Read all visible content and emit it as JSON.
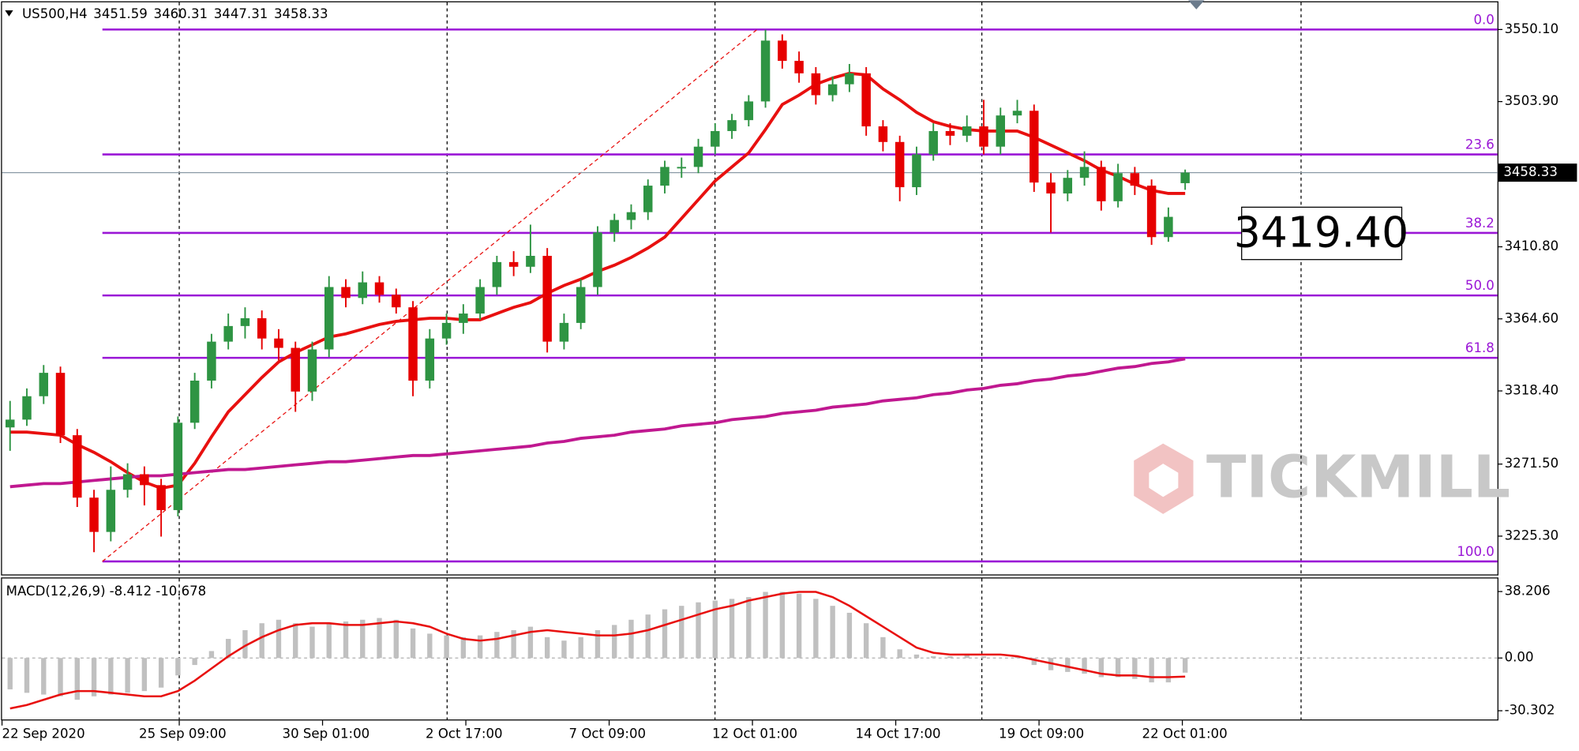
{
  "chart_data": {
    "type": "candlestick",
    "symbol": "US500,H4",
    "candles": [
      [
        3295,
        3312,
        3280,
        3300
      ],
      [
        3300,
        3320,
        3296,
        3315
      ],
      [
        3315,
        3335,
        3310,
        3330
      ],
      [
        3330,
        3334,
        3285,
        3290
      ],
      [
        3290,
        3294,
        3244,
        3250
      ],
      [
        3250,
        3255,
        3215,
        3228
      ],
      [
        3228,
        3270,
        3222,
        3255
      ],
      [
        3255,
        3272,
        3250,
        3265
      ],
      [
        3265,
        3270,
        3245,
        3258
      ],
      [
        3258,
        3262,
        3225,
        3242
      ],
      [
        3242,
        3302,
        3238,
        3298
      ],
      [
        3298,
        3330,
        3294,
        3325
      ],
      [
        3325,
        3355,
        3320,
        3350
      ],
      [
        3350,
        3368,
        3345,
        3360
      ],
      [
        3360,
        3372,
        3352,
        3365
      ],
      [
        3365,
        3370,
        3345,
        3352
      ],
      [
        3352,
        3358,
        3338,
        3346
      ],
      [
        3346,
        3350,
        3305,
        3318
      ],
      [
        3318,
        3350,
        3312,
        3345
      ],
      [
        3345,
        3392,
        3340,
        3385
      ],
      [
        3385,
        3390,
        3372,
        3378
      ],
      [
        3378,
        3395,
        3374,
        3388
      ],
      [
        3388,
        3392,
        3375,
        3380
      ],
      [
        3380,
        3384,
        3368,
        3372
      ],
      [
        3372,
        3376,
        3315,
        3325
      ],
      [
        3325,
        3358,
        3320,
        3352
      ],
      [
        3352,
        3368,
        3348,
        3362
      ],
      [
        3362,
        3374,
        3355,
        3368
      ],
      [
        3368,
        3390,
        3364,
        3385
      ],
      [
        3385,
        3405,
        3380,
        3401
      ],
      [
        3401,
        3408,
        3392,
        3398
      ],
      [
        3398,
        3425,
        3394,
        3405
      ],
      [
        3405,
        3410,
        3343,
        3350
      ],
      [
        3350,
        3368,
        3345,
        3362
      ],
      [
        3362,
        3390,
        3358,
        3385
      ],
      [
        3385,
        3424,
        3380,
        3420
      ],
      [
        3420,
        3432,
        3414,
        3428
      ],
      [
        3428,
        3438,
        3422,
        3433
      ],
      [
        3433,
        3454,
        3428,
        3450
      ],
      [
        3450,
        3466,
        3445,
        3462
      ],
      [
        3462,
        3468,
        3455,
        3462
      ],
      [
        3462,
        3480,
        3458,
        3475
      ],
      [
        3475,
        3490,
        3470,
        3485
      ],
      [
        3485,
        3496,
        3480,
        3492
      ],
      [
        3492,
        3508,
        3488,
        3504
      ],
      [
        3504,
        3550,
        3500,
        3543
      ],
      [
        3543,
        3547,
        3525,
        3530
      ],
      [
        3530,
        3536,
        3516,
        3522
      ],
      [
        3522,
        3526,
        3502,
        3508
      ],
      [
        3508,
        3520,
        3504,
        3515
      ],
      [
        3515,
        3528,
        3510,
        3522
      ],
      [
        3522,
        3526,
        3482,
        3488
      ],
      [
        3488,
        3492,
        3472,
        3478
      ],
      [
        3478,
        3482,
        3440,
        3449
      ],
      [
        3449,
        3475,
        3444,
        3470
      ],
      [
        3470,
        3490,
        3466,
        3485
      ],
      [
        3485,
        3490,
        3476,
        3482
      ],
      [
        3482,
        3495,
        3478,
        3488
      ],
      [
        3488,
        3505,
        3470,
        3475
      ],
      [
        3475,
        3500,
        3470,
        3495
      ],
      [
        3495,
        3505,
        3490,
        3498
      ],
      [
        3498,
        3502,
        3446,
        3452
      ],
      [
        3452,
        3458,
        3420,
        3445
      ],
      [
        3445,
        3460,
        3440,
        3455
      ],
      [
        3455,
        3472,
        3450,
        3462
      ],
      [
        3462,
        3466,
        3434,
        3440
      ],
      [
        3440,
        3464,
        3436,
        3458
      ],
      [
        3458,
        3462,
        3444,
        3450
      ],
      [
        3450,
        3454,
        3412,
        3417
      ],
      [
        3417,
        3436,
        3414,
        3430
      ],
      [
        3451.59,
        3460.31,
        3447.31,
        3458.33
      ]
    ],
    "bull_color": "#2e9443",
    "bear_color": "#e60000",
    "x_labels": [
      "22 Sep 2020",
      "25 Sep 09:00",
      "30 Sep 01:00",
      "2 Oct 17:00",
      "7 Oct 09:00",
      "12 Oct 01:00",
      "14 Oct 17:00",
      "19 Oct 09:00",
      "22 Oct 01:00"
    ],
    "ylim": [
      3200.75,
      3568.83
    ],
    "yticks": [
      {
        "value": 3550.1,
        "label": "3550.10"
      },
      {
        "value": 3503.9,
        "label": "3503.90"
      },
      {
        "value": 3410.8,
        "label": "3410.80"
      },
      {
        "value": 3364.6,
        "label": "3364.60"
      },
      {
        "value": 3318.4,
        "label": "3318.40"
      },
      {
        "value": 3271.5,
        "label": "3271.50"
      },
      {
        "value": 3225.3,
        "label": "3225.30"
      }
    ],
    "moving_averages": [
      {
        "color": "#e8100f",
        "values": [
          3292,
          3292,
          3291,
          3290,
          3284,
          3279,
          3273,
          3266,
          3260,
          3256,
          3258,
          3272,
          3289,
          3305,
          3316,
          3327,
          3337,
          3343,
          3348,
          3353,
          3355,
          3358,
          3361,
          3363,
          3364,
          3365,
          3365,
          3364,
          3364,
          3368,
          3372,
          3375,
          3381,
          3386,
          3390,
          3395,
          3399,
          3404,
          3410,
          3417,
          3429,
          3441,
          3453,
          3462,
          3471,
          3486,
          3502,
          3508,
          3515,
          3519,
          3522,
          3521,
          3512,
          3505,
          3497,
          3491,
          3488,
          3486,
          3485,
          3485,
          3485,
          3481,
          3476,
          3471,
          3466,
          3460,
          3456,
          3451,
          3447,
          3445,
          3445
        ]
      },
      {
        "color": "#c01890",
        "values": [
          3257,
          3258,
          3259,
          3259,
          3260,
          3261,
          3262,
          3263,
          3264,
          3264,
          3265,
          3266,
          3267,
          3268,
          3268,
          3269,
          3270,
          3271,
          3272,
          3273,
          3273,
          3274,
          3275,
          3276,
          3277,
          3277,
          3278,
          3279,
          3280,
          3281,
          3282,
          3283,
          3285,
          3286,
          3288,
          3289,
          3290,
          3292,
          3293,
          3294,
          3296,
          3297,
          3298,
          3300,
          3301,
          3302,
          3304,
          3305,
          3306,
          3308,
          3309,
          3310,
          3312,
          3313,
          3314,
          3316,
          3317,
          3319,
          3320,
          3322,
          3323,
          3325,
          3326,
          3328,
          3329,
          3331,
          3333,
          3334,
          3336,
          3337,
          3339
        ]
      }
    ],
    "fib_color": "#9a16d6",
    "fib_levels": [
      {
        "label": "0.0",
        "value": 3550.1
      },
      {
        "label": "23.6",
        "value": 3470.0
      },
      {
        "label": "38.2",
        "value": 3419.7
      },
      {
        "label": "50.0",
        "value": 3379.6
      },
      {
        "label": "61.8",
        "value": 3339.6
      },
      {
        "label": "100.0",
        "value": 3209.1
      }
    ],
    "annotation": {
      "value": 3419.4,
      "label": "3419.40"
    },
    "watermark": "TICKMILL",
    "macd": {
      "title": "MACD(12,26,9)",
      "hist_color": "#c0c0c0",
      "signal_color": "#e8100f",
      "values": [
        -18,
        -20,
        -21,
        -22,
        -24,
        -22,
        -21,
        -20,
        -19,
        -17,
        -10,
        -4,
        4,
        11,
        16,
        20,
        22,
        20,
        18,
        20,
        21,
        22,
        23,
        22,
        17,
        14,
        13,
        12,
        13,
        15,
        16,
        18,
        12,
        10,
        12,
        16,
        19,
        22,
        25,
        28,
        30,
        32,
        33,
        34,
        35,
        38,
        38,
        37,
        34,
        30,
        26,
        20,
        12,
        5,
        2,
        1,
        1,
        2,
        1,
        0,
        1,
        -4,
        -7,
        -8,
        -9,
        -11,
        -11,
        -12,
        -14,
        -14,
        -8.412
      ],
      "signal": [
        -29,
        -27,
        -24,
        -21,
        -19,
        -19,
        -20,
        -21,
        -22,
        -22,
        -19,
        -13,
        -6,
        1,
        7,
        12,
        16,
        19,
        20,
        20,
        19,
        19,
        20,
        21,
        20,
        18,
        14,
        11,
        10,
        11,
        13,
        15,
        16,
        15,
        14,
        13,
        13,
        14,
        16,
        19,
        22,
        25,
        28,
        30,
        33,
        35,
        37,
        38,
        38,
        35,
        30,
        24,
        18,
        12,
        6,
        3,
        2,
        2,
        2,
        2,
        1,
        -1,
        -3,
        -5,
        -7,
        -9,
        -10,
        -10,
        -11,
        -11,
        -10.678
      ],
      "y2lim": [
        -35.9,
        46.3
      ],
      "y2ticks": [
        38.206,
        {
          "value": 0,
          "label": "0.00"
        },
        -30.302
      ]
    }
  }
}
